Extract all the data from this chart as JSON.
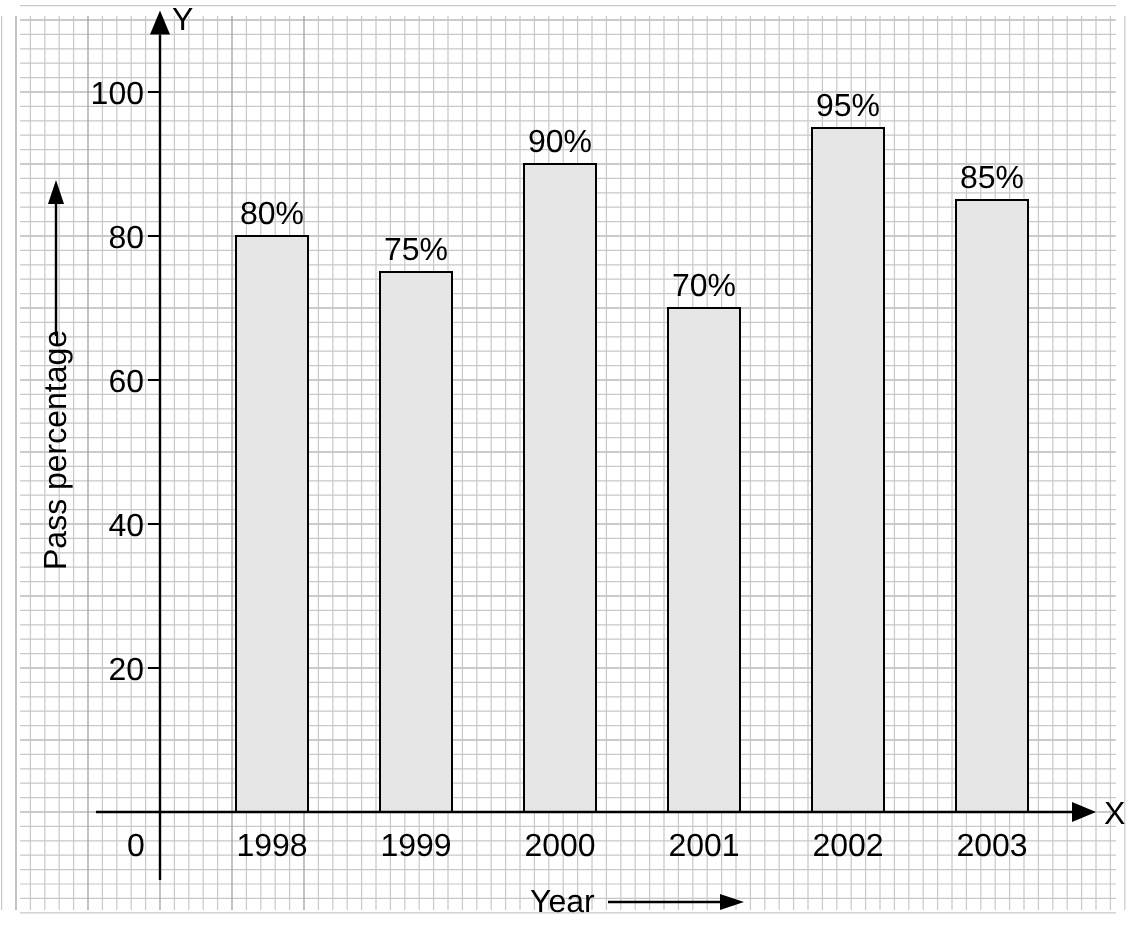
{
  "chart_data": {
    "type": "bar",
    "xlabel": "Year",
    "ylabel": "Pass percentage",
    "categories": [
      "1998",
      "1999",
      "2000",
      "2001",
      "2002",
      "2003"
    ],
    "values": [
      80,
      75,
      90,
      70,
      95,
      85
    ],
    "value_labels": [
      "80%",
      "75%",
      "90%",
      "70%",
      "95%",
      "85%"
    ],
    "color": "#e6e6e6",
    "ylim": [
      0,
      108
    ],
    "yticks": [
      20,
      40,
      60,
      80,
      100
    ],
    "grid": true,
    "annotations": [
      "Y",
      "X",
      "0"
    ]
  }
}
